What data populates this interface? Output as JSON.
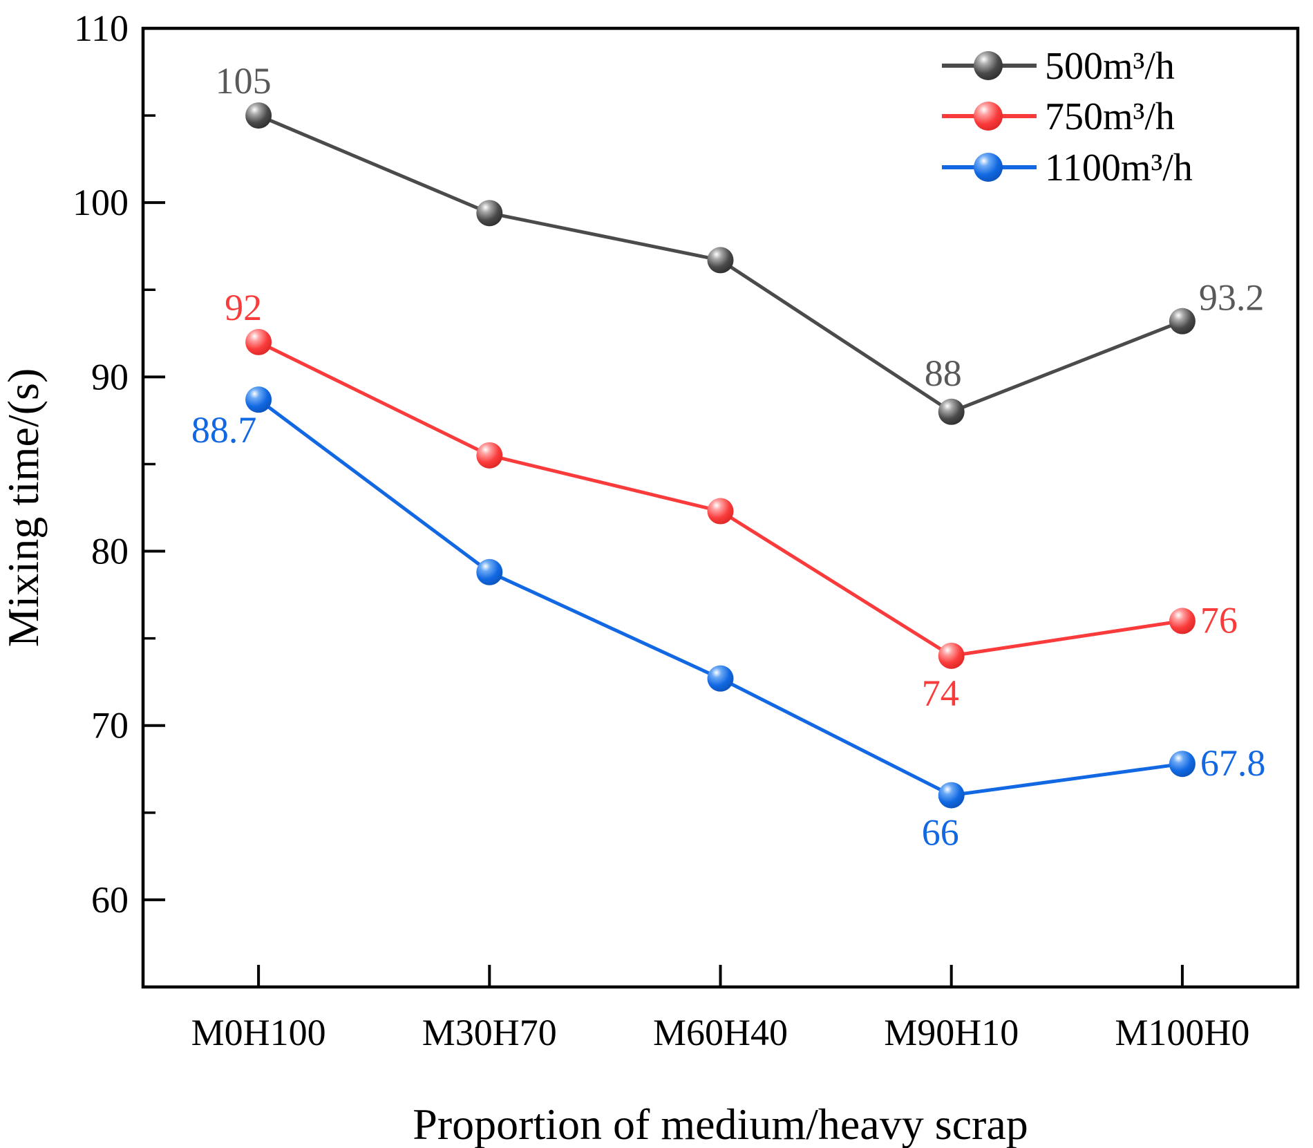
{
  "figure": {
    "background": "#ffffff",
    "frame_color": "#000000"
  },
  "chart_data": {
    "type": "line",
    "title": "",
    "xlabel": "Proportion of medium/heavy scrap",
    "ylabel": "Mixing time/(s)",
    "categories": [
      "M0H100",
      "M30H70",
      "M60H40",
      "M90H10",
      "M100H0"
    ],
    "ylim": [
      55,
      110
    ],
    "y_major_ticks": [
      110,
      100,
      90,
      80,
      70,
      60
    ],
    "y_minor_ticks": [
      105,
      95,
      85,
      75,
      65
    ],
    "grid": false,
    "legend_position": "top-right",
    "series": [
      {
        "name": "500m³/h",
        "color": "#4b4b4b",
        "label_color": "#595959",
        "ball_gradient": [
          "#ffffff",
          "#a8a8a8",
          "#4a4a4a",
          "#262626"
        ],
        "values": [
          105,
          99.4,
          96.7,
          88,
          93.2
        ],
        "point_labels": [
          {
            "index": 0,
            "text": "105",
            "position": "above-left"
          },
          {
            "index": 3,
            "text": "88",
            "position": "above"
          },
          {
            "index": 4,
            "text": "93.2",
            "position": "above-right"
          }
        ]
      },
      {
        "name": "750m³/h",
        "color": "#fa3b3b",
        "label_color": "#fa3b3b",
        "ball_gradient": [
          "#ffffff",
          "#ff9d9d",
          "#fa3b3b",
          "#d42020"
        ],
        "values": [
          92,
          85.5,
          82.3,
          74,
          76
        ],
        "point_labels": [
          {
            "index": 0,
            "text": "92",
            "position": "above-left"
          },
          {
            "index": 3,
            "text": "74",
            "position": "below"
          },
          {
            "index": 4,
            "text": "76",
            "position": "right"
          }
        ]
      },
      {
        "name": "1100m³/h",
        "color": "#1168e2",
        "label_color": "#1168e2",
        "ball_gradient": [
          "#ffffff",
          "#6aa8f5",
          "#1168e2",
          "#0a4cb0"
        ],
        "values": [
          88.7,
          78.8,
          72.7,
          66,
          67.8
        ],
        "point_labels": [
          {
            "index": 0,
            "text": "88.7",
            "position": "below-left"
          },
          {
            "index": 3,
            "text": "66",
            "position": "below"
          },
          {
            "index": 4,
            "text": "67.8",
            "position": "right"
          }
        ]
      }
    ]
  }
}
